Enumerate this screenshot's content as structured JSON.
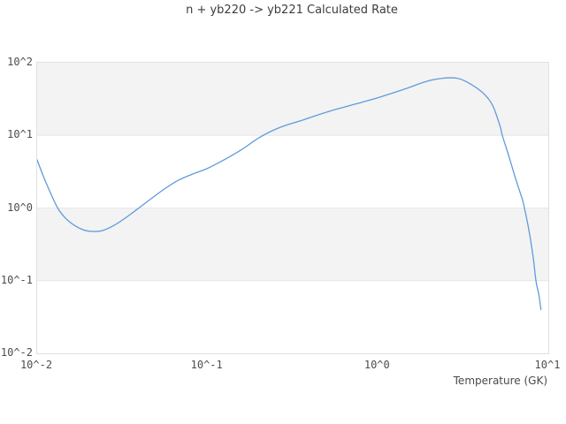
{
  "title": "n + yb220 -> yb221 Calculated Rate",
  "chart_data": {
    "type": "line",
    "title": "n + yb220 -> yb221 Calculated Rate",
    "xlabel": "Temperature (GK)",
    "ylabel": "",
    "xscale": "log",
    "yscale": "log",
    "xlim": [
      0.01,
      10
    ],
    "ylim": [
      0.01,
      100
    ],
    "x_tick_labels": [
      "10^-2",
      "10^-1",
      "10^0",
      "10^1"
    ],
    "y_tick_labels": [
      "10^2",
      "10^1",
      "10^0",
      "10^-1",
      "10^-2"
    ],
    "grid": "horizontal-decade-bands",
    "legend_position": "none",
    "line_color": "#5f9bdc",
    "band_color": "#f3f3f3",
    "gridline_color": "#e8e8e8",
    "series": [
      {
        "name": "n + yb220 -> yb221 calculated rate",
        "x": [
          0.01,
          0.0109,
          0.012,
          0.0132,
          0.0147,
          0.0165,
          0.0187,
          0.0211,
          0.0242,
          0.028,
          0.0327,
          0.0384,
          0.0458,
          0.0553,
          0.0672,
          0.0822,
          0.0997,
          0.125,
          0.159,
          0.204,
          0.267,
          0.361,
          0.516,
          0.737,
          1.0,
          1.42,
          1.91,
          2.39,
          2.93,
          3.49,
          4.18,
          4.71,
          5.21,
          5.37,
          5.85,
          6.36,
          6.87,
          7.16,
          7.7,
          8.15,
          8.46,
          8.8,
          9.05
        ],
        "y": [
          4.6,
          2.7,
          1.6,
          1.0,
          0.72,
          0.58,
          0.5,
          0.476,
          0.49,
          0.57,
          0.72,
          0.95,
          1.3,
          1.8,
          2.4,
          2.95,
          3.5,
          4.6,
          6.4,
          9.5,
          12.9,
          16.2,
          21.4,
          27.0,
          33.0,
          43.0,
          55.0,
          61.0,
          61.0,
          51.0,
          37.5,
          25.9,
          13.4,
          10.0,
          5.3,
          2.75,
          1.57,
          1.13,
          0.49,
          0.21,
          0.1,
          0.064,
          0.04
        ]
      }
    ]
  }
}
